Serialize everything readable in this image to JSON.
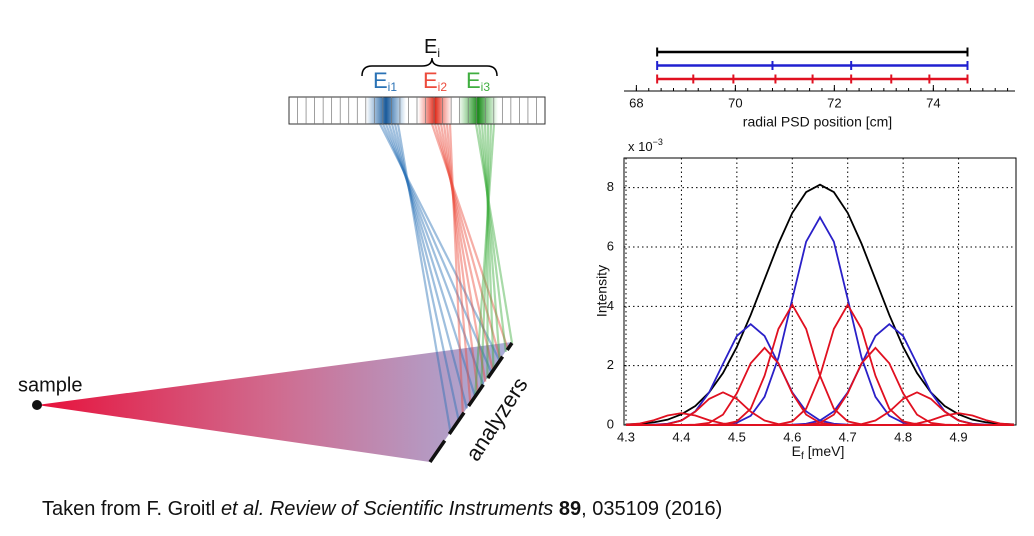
{
  "diagram": {
    "ei_label": {
      "main": "E",
      "sub": "i"
    },
    "beams": [
      {
        "main": "E",
        "sub": "i1",
        "color": "#2a72b5"
      },
      {
        "main": "E",
        "sub": "i2",
        "color": "#ec4b3c"
      },
      {
        "main": "E",
        "sub": "i3",
        "color": "#3fae3f"
      }
    ],
    "sample": "sample",
    "analyzers": "analyzers"
  },
  "chart_data": [
    {
      "type": "tickline",
      "xlabel": "radial PSD position [cm]",
      "xlim": [
        67.75,
        75.65
      ],
      "xticks": [
        68,
        70,
        72,
        74
      ],
      "xminorticks": [
        68,
        68.25,
        68.5,
        68.75,
        69,
        69.25,
        69.5,
        69.75,
        70,
        70.25,
        70.5,
        70.75,
        71,
        71.25,
        71.5,
        71.75,
        72,
        72.25,
        72.5,
        72.75,
        73,
        73.25,
        73.5,
        73.75,
        74,
        74.25,
        74.5,
        74.75,
        75,
        75.25,
        75.5
      ],
      "series": [
        {
          "color": "#000000",
          "values": [
            68.42,
            74.69
          ]
        },
        {
          "color": "#2020d0",
          "values": [
            68.42,
            70.75,
            72.34,
            74.69
          ]
        },
        {
          "color": "#e01020",
          "values": [
            68.42,
            69.15,
            69.96,
            70.81,
            71.56,
            72.34,
            73.15,
            73.92,
            74.69
          ]
        }
      ]
    },
    {
      "type": "line",
      "ylabel": "Intensity",
      "xlabel": {
        "main": "E",
        "sub": "f",
        "rest": "[meV]"
      },
      "y_multiplier": {
        "base": "x 10",
        "exp": "−3"
      },
      "xlim": [
        4.3,
        5.0
      ],
      "ylim": [
        0,
        9
      ],
      "xticks": [
        4.3,
        4.4,
        4.5,
        4.6,
        4.7,
        4.8,
        4.9
      ],
      "yticks": [
        0,
        2,
        4,
        6,
        8
      ],
      "grid": true,
      "x": [
        4.3,
        4.325,
        4.35,
        4.375,
        4.4,
        4.425,
        4.45,
        4.475,
        4.5,
        4.525,
        4.55,
        4.575,
        4.6,
        4.625,
        4.65,
        4.675,
        4.7,
        4.725,
        4.75,
        4.775,
        4.8,
        4.825,
        4.85,
        4.875,
        4.9,
        4.925,
        4.95,
        4.975,
        5.0
      ],
      "series": [
        {
          "color": "#000000",
          "values": [
            0.02,
            0.04,
            0.09,
            0.18,
            0.36,
            0.64,
            1.1,
            1.75,
            2.63,
            3.71,
            4.91,
            6.11,
            7.15,
            7.85,
            8.1,
            7.85,
            7.15,
            6.11,
            4.91,
            3.71,
            2.63,
            1.75,
            1.1,
            0.64,
            0.36,
            0.18,
            0.09,
            0.04,
            0.02
          ]
        },
        {
          "color": "#2a20c8",
          "values": [
            0,
            0,
            0.01,
            0.04,
            0.15,
            0.46,
            1.1,
            2.06,
            3,
            3.4,
            3,
            2.06,
            1.1,
            0.46,
            0.15,
            0.04,
            0.01,
            0,
            0,
            0,
            0,
            0,
            0,
            0,
            0,
            0,
            0,
            0,
            0
          ]
        },
        {
          "color": "#2a20c8",
          "values": [
            0,
            0,
            0,
            0,
            0,
            0,
            0,
            0.02,
            0.08,
            0.31,
            0.95,
            2.27,
            4.25,
            6.18,
            7,
            6.18,
            4.25,
            2.27,
            0.95,
            0.31,
            0.08,
            0.02,
            0,
            0,
            0,
            0,
            0,
            0,
            0
          ]
        },
        {
          "color": "#2a20c8",
          "values": [
            0,
            0,
            0,
            0,
            0,
            0,
            0,
            0,
            0,
            0,
            0,
            0,
            0.01,
            0.04,
            0.15,
            0.46,
            1.1,
            2.06,
            3,
            3.4,
            3,
            2.06,
            1.1,
            0.46,
            0.15,
            0.04,
            0.01,
            0,
            0
          ]
        },
        {
          "color": "#e01020",
          "values": [
            0.01,
            0.05,
            0.16,
            0.32,
            0.4,
            0.32,
            0.16,
            0.05,
            0.01,
            0,
            0,
            0,
            0,
            0,
            0,
            0,
            0,
            0,
            0,
            0,
            0,
            0,
            0,
            0,
            0,
            0,
            0,
            0,
            0
          ]
        },
        {
          "color": "#e01020",
          "values": [
            0,
            0,
            0,
            0.03,
            0.15,
            0.45,
            0.88,
            1.1,
            0.88,
            0.45,
            0.15,
            0.03,
            0,
            0,
            0,
            0,
            0,
            0,
            0,
            0,
            0,
            0,
            0,
            0,
            0,
            0,
            0,
            0,
            0
          ]
        },
        {
          "color": "#e01020",
          "values": [
            0,
            0,
            0,
            0,
            0,
            0.01,
            0.07,
            0.35,
            1.07,
            2.08,
            2.6,
            2.08,
            1.07,
            0.35,
            0.07,
            0.01,
            0,
            0,
            0,
            0,
            0,
            0,
            0,
            0,
            0,
            0,
            0,
            0,
            0
          ]
        },
        {
          "color": "#e01020",
          "values": [
            0,
            0,
            0,
            0,
            0,
            0,
            0,
            0.02,
            0.12,
            0.55,
            1.66,
            3.24,
            4.05,
            3.24,
            1.66,
            0.55,
            0.12,
            0.02,
            0,
            0,
            0,
            0,
            0,
            0,
            0,
            0,
            0,
            0,
            0
          ]
        },
        {
          "color": "#e01020",
          "values": [
            0,
            0,
            0,
            0,
            0,
            0,
            0,
            0,
            0,
            0,
            0,
            0.02,
            0.12,
            0.55,
            1.66,
            3.24,
            4.05,
            3.24,
            1.66,
            0.55,
            0.12,
            0.02,
            0,
            0,
            0,
            0,
            0,
            0,
            0
          ]
        },
        {
          "color": "#e01020",
          "values": [
            0,
            0,
            0,
            0,
            0,
            0,
            0,
            0,
            0,
            0,
            0,
            0,
            0,
            0.01,
            0.07,
            0.35,
            1.07,
            2.08,
            2.6,
            2.08,
            1.07,
            0.35,
            0.07,
            0.01,
            0,
            0,
            0,
            0,
            0
          ]
        },
        {
          "color": "#e01020",
          "values": [
            0,
            0,
            0,
            0,
            0,
            0,
            0,
            0,
            0,
            0,
            0,
            0,
            0,
            0,
            0,
            0,
            0,
            0.03,
            0.15,
            0.45,
            0.88,
            1.1,
            0.88,
            0.45,
            0.15,
            0.03,
            0,
            0,
            0
          ]
        },
        {
          "color": "#e01020",
          "values": [
            0,
            0,
            0,
            0,
            0,
            0,
            0,
            0,
            0,
            0,
            0,
            0,
            0,
            0,
            0,
            0,
            0,
            0,
            0,
            0,
            0.01,
            0.05,
            0.16,
            0.32,
            0.4,
            0.32,
            0.16,
            0.05,
            0.01
          ]
        }
      ]
    }
  ],
  "caption": [
    {
      "text": "Taken from F. Groitl ",
      "style": "normal"
    },
    {
      "text": "et al. Review of Scientific Instruments",
      "style": "italic"
    },
    {
      "text": " ",
      "style": "normal"
    },
    {
      "text": "89",
      "style": "bold"
    },
    {
      "text": ", 035109 (2016)",
      "style": "normal"
    }
  ]
}
